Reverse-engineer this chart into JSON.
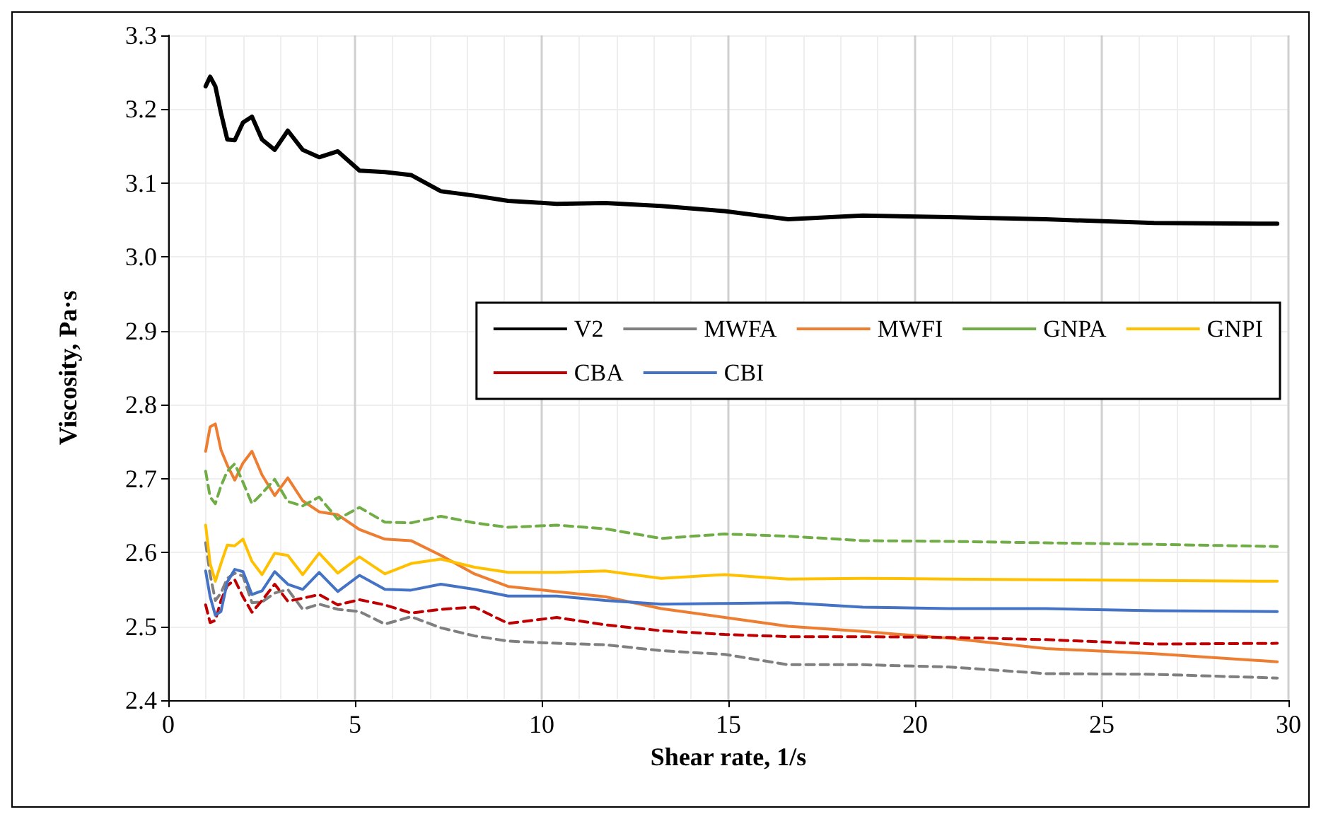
{
  "chart_data": {
    "type": "line",
    "xlabel": "Shear rate, 1/s",
    "ylabel": "Viscosity, Pa·s",
    "x": [
      1,
      1.12,
      1.26,
      1.41,
      1.58,
      1.78,
      2.0,
      2.24,
      2.51,
      2.85,
      3.2,
      3.6,
      4.04,
      4.54,
      5.12,
      5.8,
      6.5,
      7.3,
      8.2,
      9.1,
      10.4,
      11.7,
      13.2,
      14.9,
      16.6,
      18.6,
      20.9,
      23.5,
      26.4,
      29.7
    ],
    "xlim": [
      0,
      30
    ],
    "xticks": [
      0,
      5,
      10,
      15,
      20,
      25,
      30
    ],
    "ylim": [
      2.4,
      3.3
    ],
    "yticks": [
      {
        "value": 2.4,
        "label": "2.4"
      },
      {
        "value": 2.5,
        "label": "2.5"
      },
      {
        "value": 2.6,
        "label": "2.6"
      },
      {
        "value": 2.7,
        "label": "2.7"
      },
      {
        "value": 2.8,
        "label": "2.8"
      },
      {
        "value": 2.9,
        "label": "2.9"
      },
      {
        "value": 3.0,
        "label": "3.0"
      },
      {
        "value": 3.1,
        "label": "3.1"
      },
      {
        "value": 3.2,
        "label": "3.2"
      },
      {
        "value": 3.3,
        "label": "3.3"
      }
    ],
    "grid": true,
    "legend": "right",
    "marker": "none",
    "series": [
      {
        "name": "V2",
        "color": "#000000",
        "line_style": "solid",
        "values": [
          3.231,
          3.244,
          3.231,
          3.195,
          3.159,
          3.158,
          3.182,
          3.19,
          3.159,
          3.145,
          3.171,
          3.145,
          3.135,
          3.143,
          3.117,
          3.115,
          3.111,
          3.089,
          3.083,
          3.076,
          3.072,
          3.073,
          3.069,
          3.062,
          3.051,
          3.056,
          3.054,
          3.051,
          3.046,
          3.045
        ]
      },
      {
        "name": "MWFA",
        "color": "#7f7f7f",
        "line_style": "dashed",
        "values": [
          2.613,
          2.57,
          2.535,
          2.545,
          2.565,
          2.572,
          2.568,
          2.532,
          2.533,
          2.545,
          2.55,
          2.523,
          2.53,
          2.523,
          2.52,
          2.503,
          2.513,
          2.498,
          2.487,
          2.48,
          2.477,
          2.475,
          2.467,
          2.462,
          2.448,
          2.448,
          2.445,
          2.436,
          2.435,
          2.43
        ]
      },
      {
        "name": "MWFI",
        "color": "#ed7d31",
        "line_style": "solid",
        "values": [
          2.737,
          2.77,
          2.774,
          2.739,
          2.718,
          2.698,
          2.721,
          2.737,
          2.705,
          2.677,
          2.701,
          2.67,
          2.655,
          2.651,
          2.631,
          2.618,
          2.616,
          2.596,
          2.571,
          2.554,
          2.547,
          2.54,
          2.524,
          2.512,
          2.5,
          2.493,
          2.484,
          2.47,
          2.463,
          2.452
        ]
      },
      {
        "name": "GNPA",
        "color": "#70ad47",
        "line_style": "dashed",
        "values": [
          2.71,
          2.675,
          2.666,
          2.69,
          2.71,
          2.72,
          2.695,
          2.666,
          2.68,
          2.699,
          2.669,
          2.663,
          2.675,
          2.645,
          2.661,
          2.641,
          2.64,
          2.649,
          2.64,
          2.634,
          2.637,
          2.632,
          2.619,
          2.625,
          2.622,
          2.616,
          2.615,
          2.613,
          2.611,
          2.608
        ]
      },
      {
        "name": "GNPI",
        "color": "#ffc000",
        "line_style": "solid",
        "values": [
          2.637,
          2.585,
          2.561,
          2.585,
          2.61,
          2.609,
          2.618,
          2.588,
          2.57,
          2.599,
          2.596,
          2.57,
          2.599,
          2.572,
          2.594,
          2.571,
          2.585,
          2.591,
          2.58,
          2.573,
          2.573,
          2.575,
          2.565,
          2.57,
          2.564,
          2.565,
          2.564,
          2.563,
          2.562,
          2.561
        ]
      },
      {
        "name": "CBA",
        "color": "#c00000",
        "line_style": "dashed",
        "values": [
          2.529,
          2.505,
          2.508,
          2.535,
          2.555,
          2.563,
          2.54,
          2.519,
          2.535,
          2.557,
          2.534,
          2.538,
          2.543,
          2.529,
          2.536,
          2.529,
          2.518,
          2.523,
          2.526,
          2.504,
          2.512,
          2.502,
          2.494,
          2.489,
          2.486,
          2.486,
          2.485,
          2.482,
          2.476,
          2.477
        ]
      },
      {
        "name": "CBI",
        "color": "#4472c4",
        "line_style": "solid",
        "values": [
          2.575,
          2.54,
          2.515,
          2.52,
          2.56,
          2.577,
          2.574,
          2.543,
          2.548,
          2.574,
          2.557,
          2.55,
          2.573,
          2.547,
          2.569,
          2.55,
          2.549,
          2.557,
          2.55,
          2.541,
          2.541,
          2.535,
          2.53,
          2.531,
          2.532,
          2.526,
          2.524,
          2.524,
          2.521,
          2.52
        ]
      }
    ]
  }
}
